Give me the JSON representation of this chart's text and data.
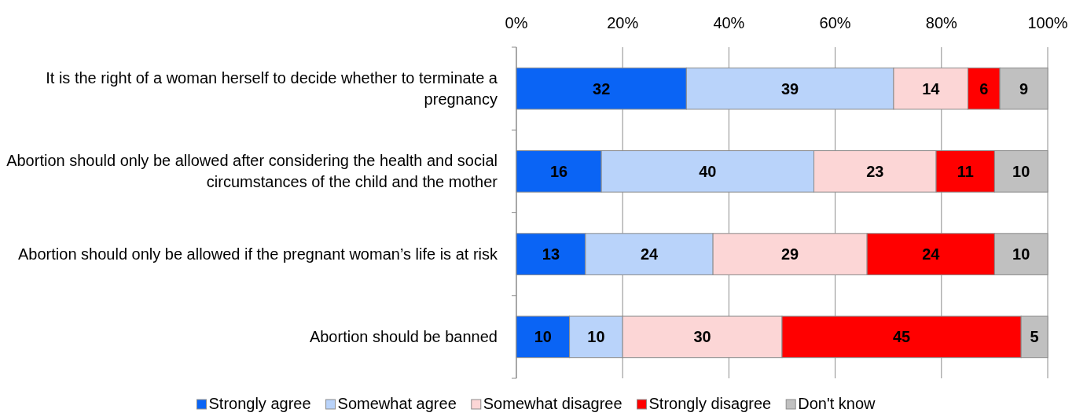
{
  "chart_data": {
    "type": "bar",
    "orientation": "horizontal",
    "stacked": true,
    "categories": [
      "It is the right of a woman herself to decide whether to terminate a pregnancy",
      "Abortion should only be allowed after considering the health and social circumstances of the child and the mother",
      "Abortion should only be allowed if the pregnant woman’s life is at risk",
      "Abortion should be banned"
    ],
    "series": [
      {
        "name": "Strongly agree",
        "color": "#0a64f5",
        "values": [
          32,
          16,
          13,
          10
        ]
      },
      {
        "name": "Somewhat agree",
        "color": "#b9d3fa",
        "values": [
          39,
          40,
          24,
          10
        ]
      },
      {
        "name": "Somewhat disagree",
        "color": "#fcd6d6",
        "values": [
          14,
          23,
          29,
          30
        ]
      },
      {
        "name": "Strongly disagree",
        "color": "#ff0000",
        "values": [
          6,
          11,
          24,
          45
        ]
      },
      {
        "name": "Don't know",
        "color": "#c0c0c0",
        "values": [
          9,
          10,
          10,
          5
        ]
      }
    ],
    "xlim": [
      0,
      100
    ],
    "xticks": [
      {
        "value": 0,
        "label": "0%"
      },
      {
        "value": 20,
        "label": "20%"
      },
      {
        "value": 40,
        "label": "40%"
      },
      {
        "value": 60,
        "label": "60%"
      },
      {
        "value": 80,
        "label": "80%"
      },
      {
        "value": 100,
        "label": "100%"
      }
    ],
    "grid": "x",
    "legend": "bottom",
    "data_labels": true
  }
}
